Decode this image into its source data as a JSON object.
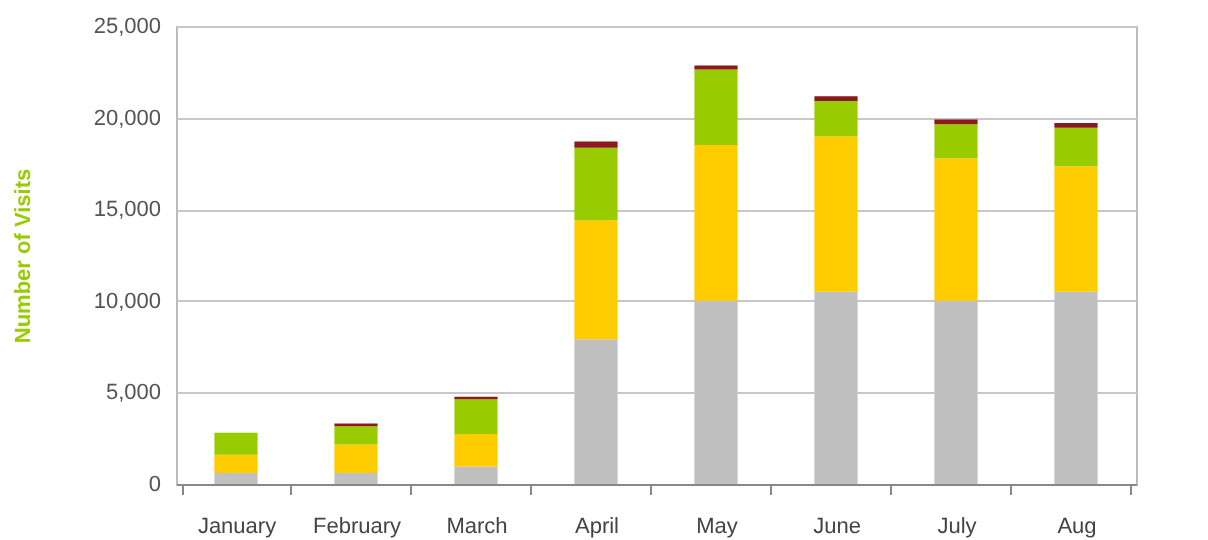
{
  "chart_data": {
    "type": "bar",
    "stacked": true,
    "ylabel": "Number of Visits",
    "categories": [
      "January",
      "February",
      "March",
      "April",
      "May",
      "June",
      "July",
      "Aug"
    ],
    "series": [
      {
        "color": "#c0c0c0",
        "values": [
          600,
          600,
          950,
          7900,
          10000,
          10500,
          10000,
          10500
        ]
      },
      {
        "color": "#ffcc00",
        "values": [
          1000,
          1550,
          1780,
          6500,
          8500,
          8480,
          7780,
          6850
        ]
      },
      {
        "color": "#99cc00",
        "values": [
          1200,
          1000,
          1890,
          3960,
          4120,
          1920,
          1860,
          2100
        ]
      },
      {
        "color": "#8b1a1a",
        "values": [
          0,
          150,
          140,
          330,
          220,
          260,
          250,
          260
        ]
      }
    ],
    "ylim": [
      0,
      25000
    ],
    "yticks": [
      {
        "value": 0,
        "label": "0"
      },
      {
        "value": 5000,
        "label": "5,000"
      },
      {
        "value": 10000,
        "label": "10,000"
      },
      {
        "value": 15000,
        "label": "15,000"
      },
      {
        "value": 20000,
        "label": "20,000"
      },
      {
        "value": 25000,
        "label": "25,000"
      }
    ],
    "grid": "y",
    "legend": false
  }
}
